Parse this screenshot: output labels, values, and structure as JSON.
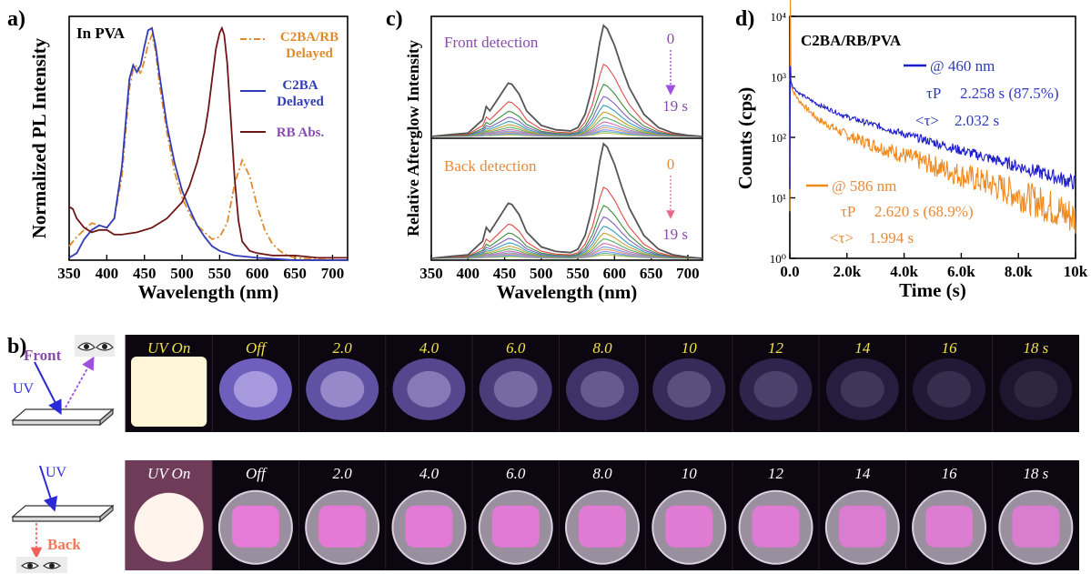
{
  "panel_letters": {
    "a": "a)",
    "b": "b)",
    "c": "c)",
    "d": "d)"
  },
  "colors": {
    "c2ba_rb_delayed": "#e08a2c",
    "c2ba_delayed": "#2f3bb8",
    "rb_abs": "#6e1616",
    "label_purple": "#8a4bb0",
    "label_orange": "#e58a3a",
    "trace_460": "#1c1ccc",
    "trace_586": "#f08a1e",
    "photo_bg": "#0b0610",
    "photo_text_front": "#f2e14a",
    "photo_text_back": "#ffffff"
  },
  "chart_data": [
    {
      "id": "a",
      "type": "line",
      "title": "",
      "xlabel": "Wavelength (nm)",
      "ylabel": "Normalized PL Intensity",
      "inset_label": "In PVA",
      "xlim": [
        350,
        720
      ],
      "ylim": [
        0,
        1.05
      ],
      "xticks": [
        350,
        400,
        450,
        500,
        550,
        600,
        650,
        700
      ],
      "series": [
        {
          "name": "C2BA/RB Delayed",
          "style": "dashdot",
          "color": "#e08a2c",
          "x": [
            350,
            360,
            370,
            380,
            390,
            400,
            410,
            420,
            430,
            435,
            440,
            445,
            450,
            455,
            460,
            465,
            470,
            480,
            490,
            500,
            510,
            520,
            530,
            540,
            550,
            560,
            570,
            580,
            590,
            600,
            610,
            620,
            630,
            640,
            650,
            700,
            720
          ],
          "y": [
            0.06,
            0.1,
            0.13,
            0.16,
            0.15,
            0.14,
            0.18,
            0.36,
            0.74,
            0.82,
            0.84,
            0.8,
            0.86,
            0.93,
            0.97,
            0.9,
            0.76,
            0.55,
            0.38,
            0.27,
            0.2,
            0.15,
            0.12,
            0.09,
            0.1,
            0.16,
            0.33,
            0.43,
            0.36,
            0.23,
            0.13,
            0.07,
            0.04,
            0.02,
            0.01,
            0.0,
            0.0
          ]
        },
        {
          "name": "C2BA Delayed",
          "style": "solid",
          "color": "#2f3bb8",
          "x": [
            350,
            360,
            370,
            380,
            390,
            400,
            410,
            420,
            430,
            435,
            440,
            445,
            450,
            455,
            460,
            465,
            470,
            480,
            490,
            500,
            510,
            520,
            530,
            540,
            550,
            560,
            570,
            600,
            650,
            720
          ],
          "y": [
            0.01,
            0.03,
            0.09,
            0.13,
            0.15,
            0.14,
            0.18,
            0.4,
            0.78,
            0.84,
            0.81,
            0.84,
            0.92,
            0.99,
            1.0,
            0.92,
            0.8,
            0.58,
            0.42,
            0.3,
            0.22,
            0.15,
            0.1,
            0.06,
            0.04,
            0.03,
            0.02,
            0.01,
            0.0,
            0.0
          ]
        },
        {
          "name": "RB Abs.",
          "style": "solid",
          "color": "#6e1616",
          "x": [
            350,
            355,
            360,
            370,
            380,
            390,
            400,
            410,
            420,
            440,
            460,
            480,
            500,
            510,
            520,
            530,
            535,
            540,
            545,
            550,
            553,
            556,
            560,
            565,
            570,
            575,
            580,
            590,
            600,
            620,
            650,
            680,
            720
          ],
          "y": [
            0.23,
            0.22,
            0.18,
            0.14,
            0.12,
            0.13,
            0.13,
            0.11,
            0.11,
            0.12,
            0.14,
            0.18,
            0.25,
            0.32,
            0.42,
            0.55,
            0.65,
            0.78,
            0.91,
            0.98,
            1.0,
            0.97,
            0.85,
            0.6,
            0.35,
            0.17,
            0.08,
            0.04,
            0.03,
            0.02,
            0.02,
            0.01,
            0.01
          ]
        }
      ]
    },
    {
      "id": "c",
      "type": "line",
      "title": "",
      "xlabel": "Wavelength (nm)",
      "ylabel": "Relative Afterglow Intensity",
      "xlim": [
        350,
        720
      ],
      "xticks": [
        350,
        400,
        450,
        500,
        550,
        600,
        650,
        700
      ],
      "subpanels": [
        {
          "label": "Front detection",
          "time_start": "0",
          "time_end": "19 s",
          "amplitudes": [
            1.0,
            0.65,
            0.47,
            0.36,
            0.28,
            0.22,
            0.17,
            0.13,
            0.1,
            0.08,
            0.06,
            0.045,
            0.03
          ]
        },
        {
          "label": "Back detection",
          "time_start": "0",
          "time_end": "19 s",
          "amplitudes": [
            1.0,
            0.62,
            0.46,
            0.36,
            0.28,
            0.22,
            0.17,
            0.13,
            0.1,
            0.08,
            0.06,
            0.045,
            0.03
          ]
        }
      ],
      "spectrum_shape": {
        "x": [
          350,
          380,
          400,
          420,
          425,
          430,
          440,
          450,
          455,
          460,
          470,
          480,
          500,
          520,
          540,
          550,
          560,
          570,
          580,
          585,
          590,
          600,
          610,
          620,
          640,
          660,
          680,
          700,
          720
        ],
        "y": [
          0.0,
          0.02,
          0.03,
          0.15,
          0.27,
          0.23,
          0.33,
          0.43,
          0.48,
          0.47,
          0.38,
          0.23,
          0.1,
          0.06,
          0.05,
          0.08,
          0.2,
          0.45,
          0.85,
          1.0,
          0.97,
          0.82,
          0.62,
          0.44,
          0.2,
          0.08,
          0.03,
          0.01,
          0.0
        ]
      },
      "series_colors": [
        "#555555",
        "#e04848",
        "#3a8a3a",
        "#8060c0",
        "#30a0c0",
        "#c0a030",
        "#55b060",
        "#d070b0",
        "#7aa0e0",
        "#e0a070",
        "#9090ff",
        "#60c0a0",
        "#c0c060"
      ]
    },
    {
      "id": "d",
      "type": "line",
      "title": "",
      "xlabel": "Time (s)",
      "ylabel": "Counts (cps)",
      "inset_label": "C2BA/RB/PVA",
      "xlim": [
        0,
        10000
      ],
      "ylim_log10": [
        0,
        4
      ],
      "y_scale": "log",
      "xticks": [
        "0.0",
        "2.0k",
        "4.0k",
        "6.0k",
        "8.0k",
        "10k"
      ],
      "yticks": [
        "10⁰",
        "10¹",
        "10²",
        "10³",
        "10⁴"
      ],
      "series": [
        {
          "name": "@ 460 nm",
          "color": "#1c1ccc",
          "tau_p": "2.258 s (87.5%)",
          "tau_avg": "2.032 s",
          "x": [
            0,
            100,
            300,
            600,
            1000,
            2000,
            3000,
            4000,
            5000,
            6000,
            7000,
            8000,
            9000,
            10000
          ],
          "y": [
            1000,
            700,
            550,
            450,
            350,
            220,
            160,
            115,
            85,
            62,
            46,
            34,
            25,
            18
          ]
        },
        {
          "name": "@ 586 nm",
          "color": "#f08a1e",
          "tau_p": "2.620 s (68.9%)",
          "tau_avg": "1.994 s",
          "x": [
            0,
            100,
            300,
            600,
            1000,
            2000,
            3000,
            4000,
            5000,
            6000,
            7000,
            8000,
            9000,
            10000
          ],
          "y": [
            900,
            600,
            420,
            300,
            200,
            110,
            75,
            52,
            36,
            25,
            18,
            12,
            8,
            5
          ]
        }
      ],
      "tau_symbol": "τP",
      "tau_avg_symbol": "<τ>"
    }
  ],
  "photo_rows": [
    {
      "id": "front",
      "labels": [
        "UV On",
        "Off",
        "2.0",
        "4.0",
        "6.0",
        "8.0",
        "10",
        "12",
        "14",
        "16",
        "18 s"
      ],
      "levels": [
        1.0,
        0.85,
        0.72,
        0.62,
        0.52,
        0.44,
        0.36,
        0.29,
        0.24,
        0.19,
        0.15
      ]
    },
    {
      "id": "back",
      "labels": [
        "UV On",
        "Off",
        "2.0",
        "4.0",
        "6.0",
        "8.0",
        "10",
        "12",
        "14",
        "16",
        "18 s"
      ],
      "levels": [
        1.0,
        0.95,
        0.9,
        0.86,
        0.82,
        0.78,
        0.74,
        0.7,
        0.66,
        0.62,
        0.58
      ]
    }
  ],
  "schematic": {
    "front_label": "Front",
    "back_label": "Back",
    "uv_label": "UV"
  }
}
